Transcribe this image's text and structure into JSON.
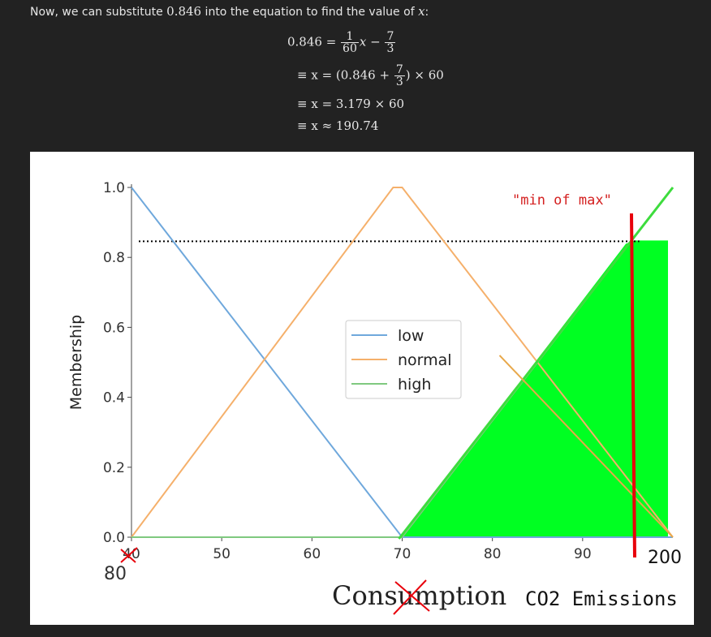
{
  "intro": {
    "prefix": "Now, we can substitute ",
    "value": "0.846",
    "middle": " into the equation to find the value of ",
    "variable": "x",
    "suffix": ":"
  },
  "equations": {
    "line1": {
      "lhs": "0.846 = ",
      "frac1_num": "1",
      "frac1_den": "60",
      "mid": "x − ",
      "frac2_num": "7",
      "frac2_den": "3"
    },
    "line2": {
      "lhs": "≡ x = (0.846 + ",
      "frac_num": "7",
      "frac_den": "3",
      "rhs": ") × 60"
    },
    "line3": "≡ x = 3.179 × 60",
    "line4": "≡ x ≈ 190.74"
  },
  "chart_data": {
    "type": "line",
    "ylabel": "Membership",
    "xlabel": "Consumption",
    "x_ticks": [
      "40",
      "50",
      "60",
      "70",
      "80",
      "90"
    ],
    "y_ticks": [
      "0.0",
      "0.2",
      "0.4",
      "0.6",
      "0.8",
      "1.0"
    ],
    "xlim": [
      40,
      100
    ],
    "ylim": [
      0,
      1
    ],
    "series": [
      {
        "name": "low",
        "color": "#6fa8dc",
        "x": [
          40,
          70,
          100
        ],
        "y": [
          1,
          0,
          0
        ]
      },
      {
        "name": "normal",
        "color": "#f5b06b",
        "x": [
          40,
          69,
          70,
          100
        ],
        "y": [
          0,
          1,
          1,
          0
        ]
      },
      {
        "name": "high",
        "color": "#7fc97f",
        "x": [
          40,
          70,
          100
        ],
        "y": [
          0,
          0,
          1
        ]
      }
    ],
    "cut_level": 0.846,
    "annotations": {
      "min_of_max": "\"min of max\"",
      "x_start_replacement": "80",
      "x_end_replacement": "200",
      "xlabel_replacement": "CO2 Emissions"
    },
    "colors": {
      "fill": "#00ff22",
      "marker": "#e8000b",
      "annotation_text": "#d42020"
    }
  }
}
